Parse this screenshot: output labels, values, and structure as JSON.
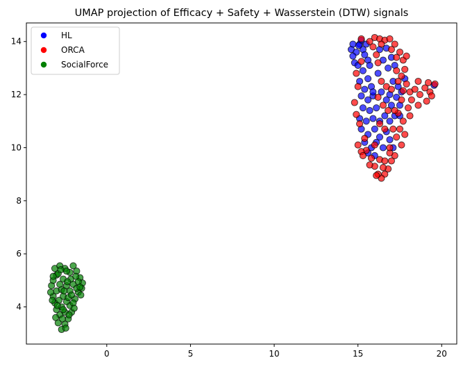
{
  "chart_data": {
    "type": "scatter",
    "title": "UMAP projection of Efficacy + Safety + Wasserstein (DTW) signals",
    "xlabel": "",
    "ylabel": "",
    "xlim": [
      -4.8,
      20.9
    ],
    "ylim": [
      2.6,
      14.7
    ],
    "xticks": [
      0,
      5,
      10,
      15,
      20
    ],
    "yticks": [
      4,
      6,
      8,
      10,
      12,
      14
    ],
    "grid": false,
    "legend_position": "top-left",
    "series": [
      {
        "name": "HL",
        "color": "#0000ff",
        "points": [
          [
            14.6,
            13.7
          ],
          [
            14.7,
            13.9
          ],
          [
            14.9,
            13.6
          ],
          [
            14.8,
            13.2
          ],
          [
            15.1,
            13.9
          ],
          [
            15.3,
            13.7
          ],
          [
            15.2,
            14.05
          ],
          [
            15.5,
            13.9
          ],
          [
            15.4,
            13.5
          ],
          [
            15.6,
            13.3
          ],
          [
            15.0,
            13.1
          ],
          [
            15.3,
            12.9
          ],
          [
            15.7,
            13.1
          ],
          [
            15.6,
            12.6
          ],
          [
            15.1,
            12.5
          ],
          [
            15.4,
            12.2
          ],
          [
            15.8,
            12.3
          ],
          [
            15.2,
            11.95
          ],
          [
            15.6,
            11.8
          ],
          [
            15.9,
            11.95
          ],
          [
            15.3,
            11.5
          ],
          [
            15.7,
            11.4
          ],
          [
            15.1,
            11.1
          ],
          [
            15.5,
            11.0
          ],
          [
            15.9,
            11.1
          ],
          [
            15.2,
            10.7
          ],
          [
            15.6,
            10.5
          ],
          [
            16.0,
            10.7
          ],
          [
            15.4,
            10.2
          ],
          [
            15.8,
            10.0
          ],
          [
            16.1,
            10.2
          ],
          [
            15.6,
            9.8
          ],
          [
            16.0,
            9.7
          ],
          [
            16.3,
            10.4
          ],
          [
            16.5,
            10.0
          ],
          [
            16.7,
            10.6
          ],
          [
            16.9,
            10.3
          ],
          [
            17.1,
            10.0
          ],
          [
            16.6,
            11.2
          ],
          [
            16.9,
            11.0
          ],
          [
            17.2,
            11.2
          ],
          [
            17.0,
            11.6
          ],
          [
            16.7,
            11.8
          ],
          [
            17.3,
            11.9
          ],
          [
            17.5,
            11.6
          ],
          [
            17.4,
            12.3
          ],
          [
            17.1,
            12.5
          ],
          [
            16.4,
            12.1
          ],
          [
            16.2,
            12.8
          ],
          [
            16.5,
            13.3
          ],
          [
            16.8,
            13.0
          ],
          [
            17.0,
            13.4
          ],
          [
            16.3,
            13.7
          ],
          [
            16.7,
            13.75
          ],
          [
            17.2,
            13.1
          ],
          [
            16.9,
            12.0
          ],
          [
            17.5,
            11.2
          ],
          [
            16.1,
            11.5
          ],
          [
            16.3,
            11.0
          ],
          [
            15.9,
            12.1
          ],
          [
            14.7,
            13.45
          ],
          [
            15.05,
            13.85
          ],
          [
            17.6,
            12.1
          ],
          [
            17.8,
            12.6
          ],
          [
            19.55,
            12.35
          ]
        ]
      },
      {
        "name": "ORCA",
        "color": "#ff0000",
        "points": [
          [
            15.2,
            14.1
          ],
          [
            15.7,
            14.0
          ],
          [
            16.0,
            14.15
          ],
          [
            16.3,
            14.1
          ],
          [
            16.6,
            14.05
          ],
          [
            16.9,
            14.1
          ],
          [
            17.2,
            13.9
          ],
          [
            17.0,
            13.7
          ],
          [
            17.5,
            13.6
          ],
          [
            17.3,
            13.4
          ],
          [
            17.7,
            13.3
          ],
          [
            17.8,
            12.95
          ],
          [
            17.6,
            12.7
          ],
          [
            17.3,
            12.9
          ],
          [
            17.4,
            12.5
          ],
          [
            17.9,
            12.4
          ],
          [
            17.7,
            12.15
          ],
          [
            18.1,
            12.1
          ],
          [
            18.4,
            12.2
          ],
          [
            18.7,
            12.0
          ],
          [
            19.0,
            12.25
          ],
          [
            19.3,
            12.1
          ],
          [
            19.6,
            12.4
          ],
          [
            19.4,
            11.95
          ],
          [
            19.1,
            11.75
          ],
          [
            18.6,
            11.6
          ],
          [
            18.2,
            11.8
          ],
          [
            18.0,
            11.5
          ],
          [
            17.6,
            11.8
          ],
          [
            17.4,
            11.3
          ],
          [
            17.7,
            11.0
          ],
          [
            17.5,
            10.7
          ],
          [
            17.8,
            10.5
          ],
          [
            17.3,
            10.4
          ],
          [
            17.6,
            10.1
          ],
          [
            17.2,
            9.7
          ],
          [
            17.0,
            9.5
          ],
          [
            16.8,
            9.2
          ],
          [
            16.6,
            9.0
          ],
          [
            16.4,
            8.85
          ],
          [
            16.2,
            9.0
          ],
          [
            16.0,
            9.3
          ],
          [
            15.8,
            9.6
          ],
          [
            16.3,
            9.55
          ],
          [
            16.6,
            9.5
          ],
          [
            16.9,
            9.8
          ],
          [
            15.5,
            9.9
          ],
          [
            15.2,
            9.85
          ],
          [
            15.0,
            10.1
          ],
          [
            15.4,
            10.35
          ],
          [
            15.1,
            10.9
          ],
          [
            14.9,
            11.25
          ],
          [
            14.8,
            11.7
          ],
          [
            15.0,
            12.3
          ],
          [
            14.9,
            12.8
          ],
          [
            15.2,
            13.25
          ],
          [
            16.1,
            13.5
          ],
          [
            16.4,
            12.5
          ],
          [
            16.7,
            12.3
          ],
          [
            16.2,
            11.9
          ],
          [
            16.5,
            11.6
          ],
          [
            16.8,
            11.4
          ],
          [
            16.3,
            10.9
          ],
          [
            16.6,
            10.7
          ],
          [
            16.0,
            10.1
          ],
          [
            16.9,
            10.0
          ],
          [
            17.1,
            10.7
          ],
          [
            17.2,
            11.4
          ],
          [
            18.1,
            11.2
          ],
          [
            18.6,
            12.5
          ],
          [
            19.2,
            12.45
          ],
          [
            15.9,
            13.8
          ],
          [
            16.2,
            13.2
          ],
          [
            17.9,
            13.45
          ],
          [
            15.7,
            9.35
          ],
          [
            16.1,
            8.95
          ],
          [
            16.5,
            9.25
          ],
          [
            15.3,
            9.7
          ],
          [
            17.0,
            12.2
          ],
          [
            16.4,
            13.9
          ]
        ]
      },
      {
        "name": "SocialForce",
        "color": "#008000",
        "points": [
          [
            -3.3,
            4.8
          ],
          [
            -3.2,
            5.0
          ],
          [
            -3.0,
            5.2
          ],
          [
            -3.1,
            5.45
          ],
          [
            -2.8,
            5.55
          ],
          [
            -2.5,
            5.45
          ],
          [
            -2.2,
            5.3
          ],
          [
            -2.0,
            5.55
          ],
          [
            -1.8,
            5.35
          ],
          [
            -1.6,
            5.1
          ],
          [
            -1.45,
            4.9
          ],
          [
            -1.5,
            4.7
          ],
          [
            -1.7,
            4.55
          ],
          [
            -1.9,
            4.3
          ],
          [
            -2.2,
            4.05
          ],
          [
            -2.1,
            3.8
          ],
          [
            -2.3,
            3.55
          ],
          [
            -2.5,
            3.35
          ],
          [
            -2.7,
            3.15
          ],
          [
            -2.9,
            3.4
          ],
          [
            -2.8,
            3.7
          ],
          [
            -3.0,
            3.9
          ],
          [
            -3.1,
            4.15
          ],
          [
            -3.2,
            4.4
          ],
          [
            -3.0,
            4.6
          ],
          [
            -2.8,
            4.85
          ],
          [
            -2.6,
            5.05
          ],
          [
            -2.4,
            4.8
          ],
          [
            -2.2,
            4.6
          ],
          [
            -2.0,
            4.85
          ],
          [
            -1.8,
            4.7
          ],
          [
            -2.6,
            4.4
          ],
          [
            -2.4,
            4.2
          ],
          [
            -2.7,
            4.0
          ],
          [
            -2.5,
            3.8
          ],
          [
            -2.3,
            4.35
          ],
          [
            -2.0,
            4.15
          ],
          [
            -1.7,
            4.95
          ],
          [
            -2.9,
            5.25
          ],
          [
            -2.4,
            5.35
          ],
          [
            -3.35,
            4.55
          ],
          [
            -3.25,
            4.25
          ],
          [
            -2.65,
            3.55
          ],
          [
            -2.45,
            3.2
          ],
          [
            -1.95,
            3.95
          ],
          [
            -1.55,
            4.45
          ],
          [
            -2.15,
            5.05
          ],
          [
            -2.85,
            4.25
          ],
          [
            -2.7,
            4.65
          ],
          [
            -2.95,
            4.05
          ],
          [
            -1.85,
            5.15
          ],
          [
            -2.55,
            4.6
          ],
          [
            -2.25,
            3.7
          ],
          [
            -3.05,
            3.6
          ],
          [
            -2.1,
            4.45
          ],
          [
            -2.75,
            5.4
          ],
          [
            -1.6,
            4.75
          ],
          [
            -2.35,
            4.95
          ],
          [
            -3.2,
            5.15
          ],
          [
            -2.6,
            3.9
          ]
        ]
      }
    ]
  },
  "legend": {
    "hl": "HL",
    "orca": "ORCA",
    "socialforce": "SocialForce"
  }
}
